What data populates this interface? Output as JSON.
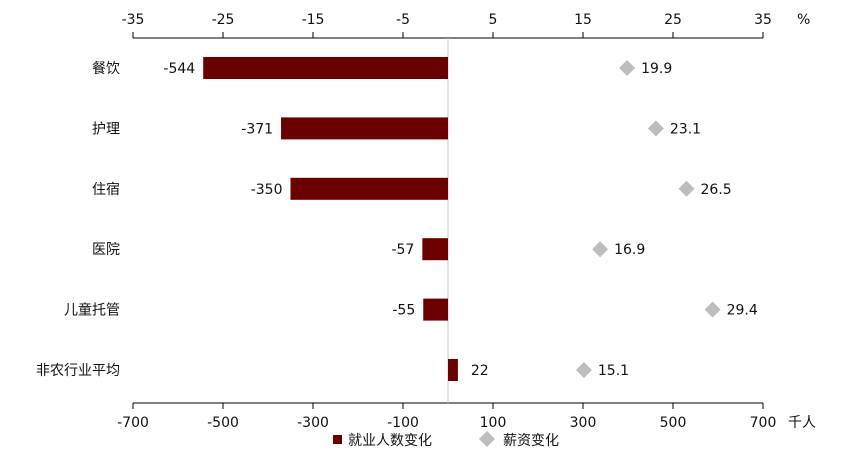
{
  "chart_data": {
    "type": "bar",
    "orientation": "horizontal",
    "categories": [
      "餐饮",
      "护理",
      "住宿",
      "医院",
      "儿童托管",
      "非农行业平均"
    ],
    "series": [
      {
        "name": "就业人数变化",
        "kind": "bar",
        "axis": "bottom",
        "color": "#6b0000",
        "values": [
          -544,
          -371,
          -350,
          -57,
          -55,
          22
        ]
      },
      {
        "name": "薪资变化",
        "kind": "scatter",
        "marker": "diamond",
        "axis": "top",
        "color": "#bdbdbd",
        "values": [
          19.9,
          23.1,
          26.5,
          16.9,
          29.4,
          15.1
        ]
      }
    ],
    "bottom_axis": {
      "unit": "千人",
      "ticks": [
        -700,
        -500,
        -300,
        -100,
        100,
        300,
        500,
        700
      ],
      "range": [
        -700,
        700
      ]
    },
    "top_axis": {
      "unit": "%",
      "ticks": [
        -35,
        -25,
        -15,
        -5,
        5,
        15,
        25,
        35
      ],
      "range": [
        -35,
        35
      ]
    },
    "grid": false,
    "legend_position": "bottom-center"
  }
}
